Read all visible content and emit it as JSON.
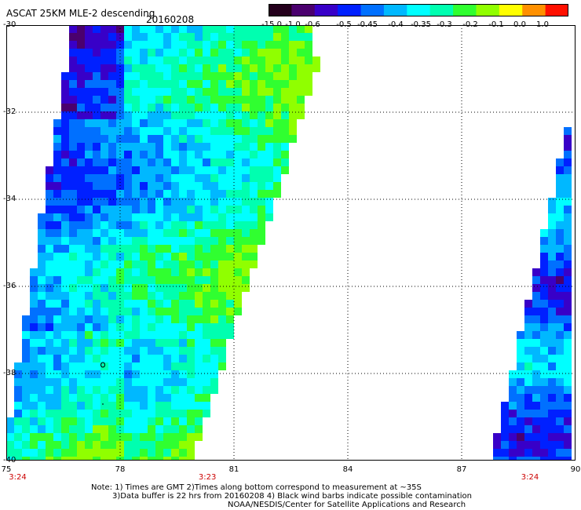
{
  "title": "ASCAT 25KM MLE-2 descending",
  "date": "20160208",
  "colorbar": {
    "labels": [
      "-15.0",
      "-1.0",
      "-0.6",
      "-0.6",
      "-0.5",
      "-0.45",
      "-0.4",
      "-0.35",
      "-0.3",
      "-0.2",
      "-0.1",
      "0.0",
      "1.0"
    ],
    "colors": [
      "#24001c",
      "#4a006e",
      "#3800c8",
      "#0020ff",
      "#0070ff",
      "#00b8ff",
      "#00ffff",
      "#00ffb0",
      "#30ff30",
      "#90ff00",
      "#ffff00",
      "#ff9000",
      "#ff1000"
    ]
  },
  "axes": {
    "lat_labels": [
      "-30",
      "-32",
      "-34",
      "-36",
      "-38",
      "-40"
    ],
    "lon_labels": [
      "75",
      "78",
      "81",
      "84",
      "87",
      "90"
    ],
    "lat_range": [
      -40,
      -30
    ],
    "lon_range": [
      75,
      90
    ]
  },
  "time_labels": [
    {
      "text": "3:24",
      "lon": 75.3
    },
    {
      "text": "3:23",
      "lon": 80.3
    },
    {
      "text": "3:24",
      "lon": 88.8
    }
  ],
  "notes": [
    "Note: 1) Times are GMT 2)Times along bottom correspond to measurement at ~35S",
    "3)Data buffer is 22 hrs from 20160208 4) Black wind barbs indicate possible contamination",
    "NOAA/NESDIS/Center for Satellite Applications and Research"
  ]
}
